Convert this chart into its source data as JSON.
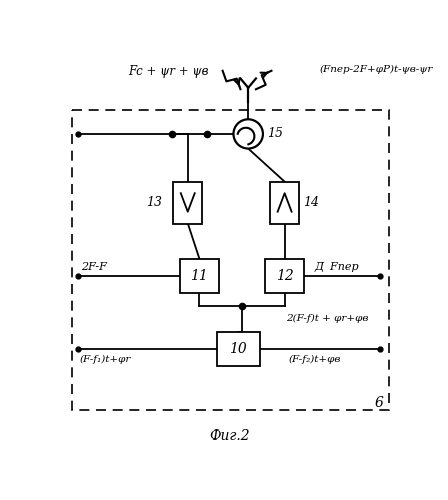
{
  "fig_width": 4.48,
  "fig_height": 5.0,
  "dpi": 100,
  "bg_color": "#ffffff",
  "line_color": "#000000",
  "top_label_left": "Fc + ψr + ψв",
  "top_label_right": "(Fnep-2F+φΡ)t-ψв-ψr",
  "label_2F_F": "2F-F",
  "label_D_Fnep": "Д  Fnep",
  "label_bottom_left": "(F-f₁)t+φr",
  "label_bottom_right": "(F-f₂)t+φв",
  "label_mid_right": "2(F-f)t + φr+φв",
  "label_15": "15",
  "label_13": "13",
  "label_14": "14",
  "label_11": "11",
  "label_12": "12",
  "label_10": "10",
  "label_6": "6",
  "caption": "Фиг.2"
}
